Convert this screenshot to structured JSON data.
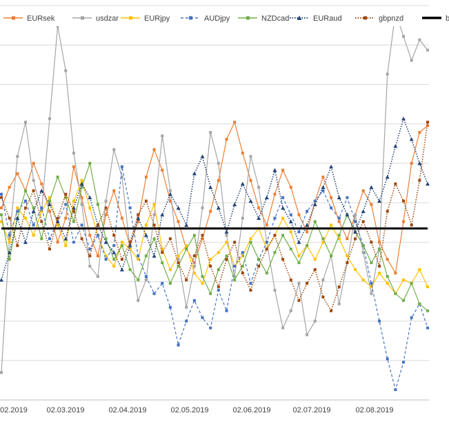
{
  "chart_data": {
    "type": "line",
    "title": "",
    "xlabel": "",
    "ylabel": "",
    "x_tick_labels": [
      "02.2019",
      "02.03.2019",
      "02.04.2019",
      "02.05.2019",
      "02.06.2019",
      "02.07.2019",
      "02.08.2019"
    ],
    "legend_position": "top",
    "grid": true,
    "series": [
      {
        "name": "EURsek",
        "color": "#ED7D31",
        "style": "solid",
        "marker": "square",
        "values": [
          0.6,
          1.2,
          1.6,
          1.1,
          1.9,
          1.3,
          0.5,
          -0.4,
          0.3,
          1.8,
          0.9,
          -0.2,
          -0.8,
          0.4,
          1.1,
          0.3,
          -0.5,
          0.2,
          1.5,
          2.3,
          1.7,
          0.8,
          0.2,
          -0.6,
          -1.0,
          -0.3,
          0.5,
          1.4,
          2.6,
          3.1,
          2.2,
          1.4,
          0.6,
          0.1,
          1.0,
          1.7,
          1.2,
          0.4,
          -0.1,
          0.8,
          1.5,
          0.9,
          0.2,
          -0.3,
          0.4,
          1.1,
          0.7,
          -0.4,
          -0.9,
          -1.3,
          0.2,
          1.9,
          2.8,
          3.0
        ]
      },
      {
        "name": "usdzar",
        "color": "#A5A5A5",
        "style": "solid",
        "marker": "square",
        "values": [
          -4.2,
          -0.3,
          2.1,
          3.1,
          1.4,
          0.5,
          3.2,
          5.9,
          4.6,
          2.2,
          0.7,
          -1.1,
          -1.4,
          0.8,
          2.3,
          1.5,
          -0.6,
          -2.1,
          -1.5,
          0.4,
          2.7,
          1.1,
          -0.9,
          -2.3,
          -1.1,
          0.6,
          2.8,
          1.9,
          -0.2,
          -1.4,
          0.3,
          2.1,
          1.2,
          -0.4,
          -1.8,
          -2.9,
          -2.4,
          -1.6,
          -3.1,
          -2.7,
          -1.5,
          -0.8,
          -2.2,
          -1.0,
          0.4,
          -0.7,
          -1.9,
          -0.6,
          4.5,
          6.3,
          5.6,
          4.9,
          5.5,
          5.2
        ]
      },
      {
        "name": "EURjpy",
        "color": "#FFC000",
        "style": "solid",
        "marker": "square",
        "values": [
          0.2,
          -0.4,
          0.6,
          0.3,
          -0.2,
          0.5,
          0.9,
          0.1,
          -0.5,
          0.8,
          1.4,
          0.6,
          -0.2,
          -0.8,
          -1.1,
          -0.4,
          -0.6,
          -0.9,
          0.1,
          0.7,
          -0.6,
          -1.2,
          -0.8,
          -0.5,
          -1.3,
          -1.6,
          -0.9,
          -0.7,
          -0.4,
          -1.1,
          -0.8,
          -0.3,
          0.0,
          -0.6,
          -0.2,
          0.3,
          -0.1,
          -0.8,
          -0.5,
          -0.9,
          -0.4,
          0.1,
          -0.3,
          -0.8,
          -1.2,
          -1.5,
          -1.7,
          -1.3,
          -1.6,
          -1.9,
          -1.5,
          -1.6,
          -1.2,
          -1.7
        ]
      },
      {
        "name": "AUDjpy",
        "color": "#4472C4",
        "style": "dashed",
        "marker": "square",
        "values": [
          1.0,
          -0.2,
          0.5,
          0.8,
          0.1,
          0.6,
          -0.3,
          0.2,
          0.7,
          -0.4,
          0.1,
          -0.6,
          -0.2,
          -0.9,
          -0.5,
          1.8,
          0.6,
          -0.8,
          -1.4,
          -1.9,
          -1.6,
          -2.3,
          -3.4,
          -2.7,
          -2.1,
          -2.6,
          -2.9,
          -1.8,
          -2.4,
          -1.1,
          -0.7,
          -1.6,
          -0.9,
          -0.4,
          0.3,
          0.9,
          0.4,
          -0.1,
          0.5,
          0.8,
          1.1,
          0.6,
          0.3,
          0.9,
          0.2,
          -0.5,
          -1.6,
          -2.7,
          -3.8,
          -4.7,
          -3.9,
          -2.6,
          -2.2,
          -2.9
        ]
      },
      {
        "name": "NZDcad",
        "color": "#70AD47",
        "style": "solid",
        "marker": "square",
        "values": [
          0.4,
          -0.9,
          0.3,
          1.1,
          0.6,
          -0.3,
          0.8,
          1.5,
          0.9,
          0.2,
          1.2,
          1.9,
          0.7,
          -0.3,
          -0.9,
          -0.5,
          -1.2,
          -1.5,
          -0.8,
          -0.3,
          -1.0,
          -1.6,
          -1.1,
          -0.6,
          -0.2,
          -1.4,
          -1.9,
          -1.2,
          -0.8,
          -1.5,
          -1.1,
          -0.4,
          -0.9,
          -1.3,
          -0.7,
          -0.2,
          -0.6,
          -1.0,
          -0.5,
          0.2,
          -0.3,
          -0.8,
          -0.2,
          0.4,
          -0.1,
          -0.5,
          -1.0,
          -0.6,
          -1.4,
          -1.9,
          -2.1,
          -1.6,
          -2.2,
          -2.4
        ]
      },
      {
        "name": "EURaud",
        "color": "#264478",
        "style": "dotted",
        "marker": "triangle",
        "values": [
          -1.5,
          -0.7,
          0.3,
          -0.4,
          0.5,
          1.1,
          0.7,
          0.2,
          -0.3,
          0.6,
          1.3,
          0.9,
          0.1,
          -0.4,
          -0.7,
          -1.2,
          -0.5,
          0.3,
          -0.2,
          -0.8,
          0.4,
          1.0,
          0.6,
          0.1,
          1.6,
          2.1,
          1.2,
          0.6,
          -0.1,
          0.7,
          1.3,
          0.8,
          0.3,
          0.9,
          1.7,
          0.6,
          0.2,
          -0.4,
          0.1,
          0.7,
          1.2,
          1.8,
          0.9,
          0.4,
          -0.1,
          0.5,
          1.2,
          0.8,
          1.5,
          2.4,
          3.2,
          2.6,
          1.9,
          1.3
        ]
      },
      {
        "name": "gbpnzd",
        "color": "#9E480E",
        "style": "dotted",
        "marker": "square",
        "values": [
          0.9,
          0.3,
          -0.5,
          0.6,
          1.1,
          0.2,
          -0.6,
          0.3,
          1.0,
          0.5,
          -0.3,
          -0.8,
          0.1,
          0.6,
          -0.2,
          -0.9,
          -0.4,
          0.4,
          0.8,
          0.1,
          -0.7,
          -0.3,
          -1.0,
          -1.5,
          -0.8,
          -0.2,
          -1.1,
          -1.7,
          -0.9,
          -0.4,
          -1.3,
          -1.8,
          -1.1,
          -0.6,
          -0.2,
          -0.9,
          -1.5,
          -2.1,
          -1.6,
          -1.2,
          -2.0,
          -2.4,
          -1.7,
          -1.0,
          -0.3,
          0.2,
          -0.4,
          -1.1,
          0.5,
          1.3,
          0.8,
          0.1,
          1.4,
          3.1
        ]
      },
      {
        "name": "bod",
        "color": "#000000",
        "style": "solid-thick",
        "marker": "none",
        "values": [
          0,
          0,
          0,
          0,
          0,
          0,
          0,
          0,
          0,
          0,
          0,
          0,
          0,
          0,
          0,
          0,
          0,
          0,
          0,
          0,
          0,
          0,
          0,
          0,
          0,
          0,
          0,
          0,
          0,
          0,
          0,
          0,
          0,
          0,
          0,
          0,
          0,
          0,
          0,
          0,
          0,
          0,
          0,
          0,
          0,
          0,
          0,
          0,
          0,
          0,
          0,
          0,
          0,
          0
        ]
      }
    ],
    "ylim": [
      -5,
      6.5
    ]
  }
}
